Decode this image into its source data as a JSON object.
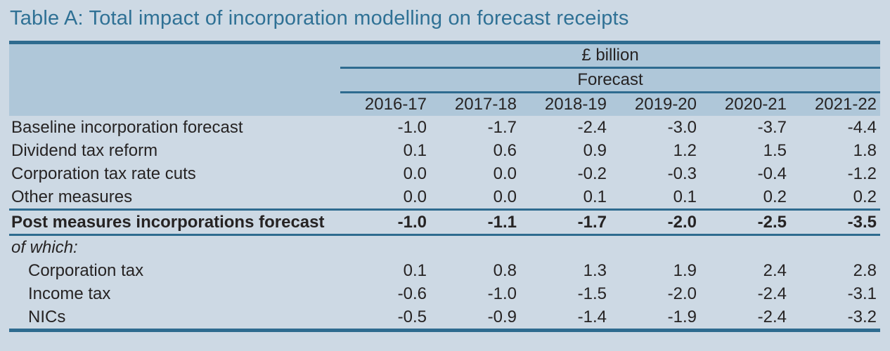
{
  "page": {
    "title": "Table A: Total impact of incorporation modelling on forecast receipts"
  },
  "table": {
    "unit_label": "£ billion",
    "forecast_label": "Forecast",
    "years": [
      "2016-17",
      "2017-18",
      "2018-19",
      "2019-20",
      "2020-21",
      "2021-22"
    ],
    "rows": [
      {
        "label": "Baseline incorporation forecast",
        "values": [
          "-1.0",
          "-1.7",
          "-2.4",
          "-3.0",
          "-3.7",
          "-4.4"
        ]
      },
      {
        "label": "Dividend tax reform",
        "values": [
          "0.1",
          "0.6",
          "0.9",
          "1.2",
          "1.5",
          "1.8"
        ]
      },
      {
        "label": "Corporation tax rate cuts",
        "values": [
          "0.0",
          "0.0",
          "-0.2",
          "-0.3",
          "-0.4",
          "-1.2"
        ]
      },
      {
        "label": "Other measures",
        "values": [
          "0.0",
          "0.0",
          "0.1",
          "0.1",
          "0.2",
          "0.2"
        ]
      },
      {
        "label": "Post measures incorporations forecast",
        "values": [
          "-1.0",
          "-1.1",
          "-1.7",
          "-2.0",
          "-2.5",
          "-3.5"
        ]
      },
      {
        "label": "of which:",
        "values": [
          "",
          "",
          "",
          "",
          "",
          ""
        ]
      },
      {
        "label": "Corporation tax",
        "values": [
          "0.1",
          "0.8",
          "1.3",
          "1.9",
          "2.4",
          "2.8"
        ]
      },
      {
        "label": "Income tax",
        "values": [
          "-0.6",
          "-1.0",
          "-1.5",
          "-2.0",
          "-2.4",
          "-3.1"
        ]
      },
      {
        "label": "NICs",
        "values": [
          "-0.5",
          "-0.9",
          "-1.4",
          "-1.9",
          "-2.4",
          "-3.2"
        ]
      }
    ]
  },
  "colors": {
    "page_background": "#cdd9e4",
    "header_background": "#afc7d9",
    "rule": "#2e6b8f",
    "title_text": "#2f7195",
    "body_text": "#262323"
  }
}
